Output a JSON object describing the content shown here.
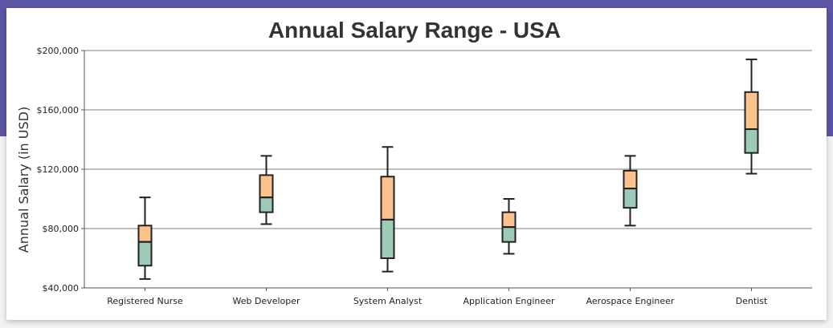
{
  "chart_data": {
    "type": "box",
    "title": "Annual Salary Range - USA",
    "ylabel": "Annual Salary (in USD)",
    "xlabel": "",
    "ylim": [
      40000,
      200000
    ],
    "yticks": [
      40000,
      80000,
      120000,
      160000,
      200000
    ],
    "ytick_labels": [
      "$40,000",
      "$80,000",
      "$120,000",
      "$160,000",
      "$200,000"
    ],
    "grid": true,
    "categories": [
      "Registered Nurse",
      "Web Developer",
      "System Analyst",
      "Application Engineer",
      "Aerospace Engineer",
      "Dentist"
    ],
    "series": [
      {
        "category": "Registered Nurse",
        "min": 46000,
        "q1": 55000,
        "median": 71000,
        "q3": 82000,
        "max": 101000
      },
      {
        "category": "Web Developer",
        "min": 83000,
        "q1": 91000,
        "median": 101000,
        "q3": 116000,
        "max": 129000
      },
      {
        "category": "System Analyst",
        "min": 51000,
        "q1": 60000,
        "median": 86000,
        "q3": 115000,
        "max": 135000
      },
      {
        "category": "Application Engineer",
        "min": 63000,
        "q1": 71000,
        "median": 81000,
        "q3": 91000,
        "max": 100000
      },
      {
        "category": "Aerospace Engineer",
        "min": 82000,
        "q1": 94000,
        "median": 107000,
        "q3": 119000,
        "max": 129000
      },
      {
        "category": "Dentist",
        "min": 117000,
        "q1": 131000,
        "median": 147000,
        "q3": 172000,
        "max": 194000
      }
    ],
    "colors": {
      "upper_box": "#fcc28c",
      "lower_box": "#9ecab8",
      "stroke": "#222222",
      "grid": "#555555",
      "page_band": "#5b55a6"
    }
  }
}
